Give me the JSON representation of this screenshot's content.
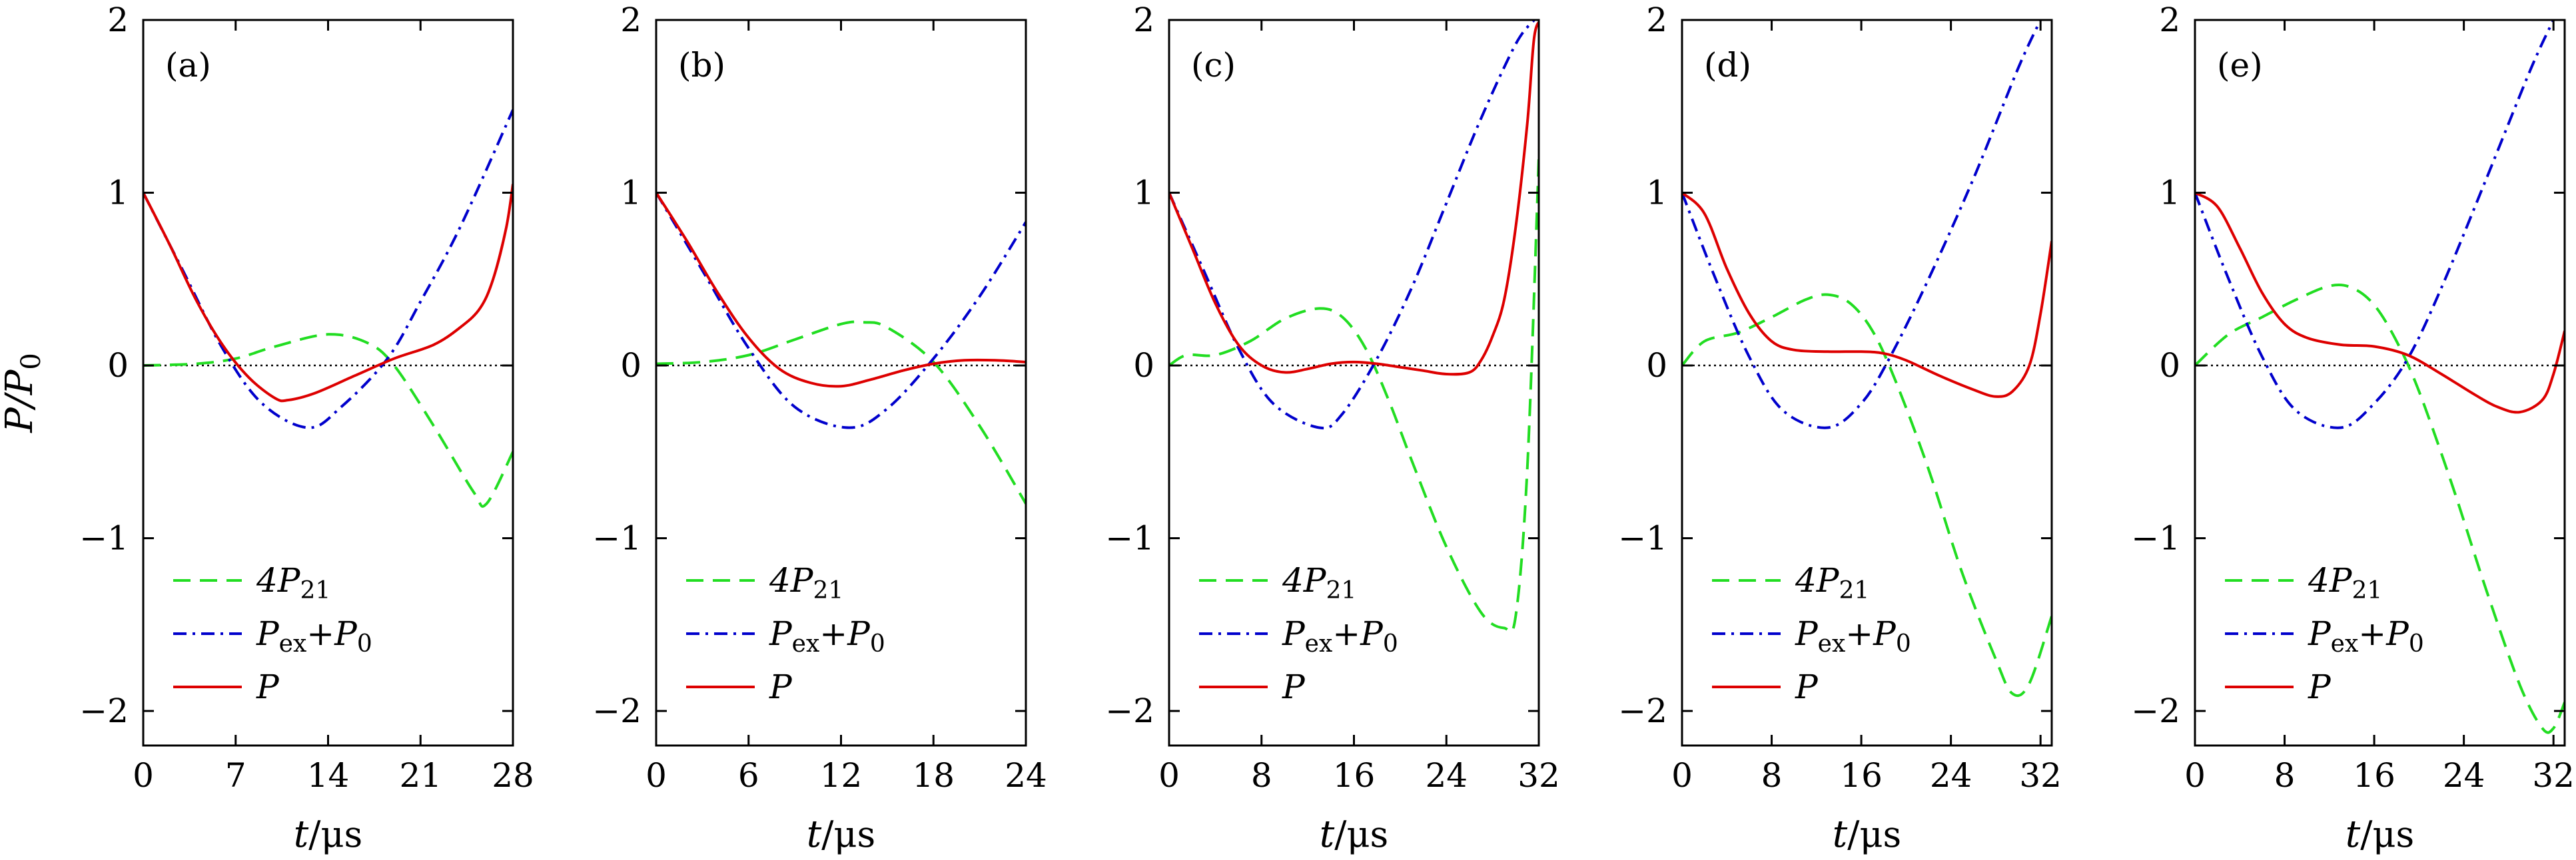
{
  "figure": {
    "ylabel": "P/P0",
    "ylabel_main": "P/P",
    "ylabel_sub": "0",
    "xlabel_var": "t",
    "xlabel_unit": "/μs"
  },
  "legend": {
    "entries": [
      {
        "label_main": "4P",
        "label_sub": "21",
        "color": "#22dd22",
        "style": "dashed"
      },
      {
        "label_main": "P",
        "label_sub": "ex",
        "label_rest": "+P",
        "label_sub2": "0",
        "color": "#0000cc",
        "style": "dashdot"
      },
      {
        "label_main": "P",
        "label_sub": "",
        "color": "#dd0000",
        "style": "solid"
      }
    ]
  },
  "chart_data": [
    {
      "type": "line",
      "panel": "(a)",
      "xlim": [
        0,
        28
      ],
      "ylim": [
        -2.2,
        2
      ],
      "xticks": [
        "0",
        "7",
        "14",
        "21",
        "28"
      ],
      "xtick_values": [
        0,
        7,
        14,
        21,
        28
      ],
      "yticks": [
        "−2",
        "−1",
        "0",
        "1",
        "2"
      ],
      "ytick_values": [
        -2,
        -1,
        0,
        1,
        2
      ],
      "xlabel": "t/μs",
      "ylabel": "P/P0",
      "series": [
        {
          "name": "4P21",
          "color": "#22dd22",
          "style": "dashed",
          "x": [
            0,
            4,
            7,
            10,
            14,
            17,
            19,
            22,
            25,
            26,
            28
          ],
          "y": [
            0,
            0.01,
            0.04,
            0.11,
            0.18,
            0.13,
            0.0,
            -0.35,
            -0.73,
            -0.8,
            -0.5
          ]
        },
        {
          "name": "Pex+P0",
          "color": "#0000cc",
          "style": "dashdot",
          "x": [
            0,
            3,
            6,
            9,
            12.5,
            15,
            18.5,
            21,
            24,
            28
          ],
          "y": [
            1,
            0.55,
            0.1,
            -0.22,
            -0.36,
            -0.24,
            0.04,
            0.37,
            0.8,
            1.48
          ]
        },
        {
          "name": "P",
          "color": "#dd0000",
          "style": "solid",
          "x": [
            0,
            2,
            4,
            6,
            8,
            10,
            11,
            13,
            16,
            19,
            22,
            24,
            25.5,
            26.5,
            27.5,
            28
          ],
          "y": [
            1,
            0.7,
            0.38,
            0.12,
            -0.07,
            -0.19,
            -0.2,
            -0.16,
            -0.06,
            0.04,
            0.12,
            0.22,
            0.33,
            0.5,
            0.8,
            1.05
          ]
        }
      ]
    },
    {
      "type": "line",
      "panel": "(b)",
      "xlim": [
        0,
        24
      ],
      "ylim": [
        -2.2,
        2
      ],
      "xticks": [
        "0",
        "6",
        "12",
        "18",
        "24"
      ],
      "xtick_values": [
        0,
        6,
        12,
        18,
        24
      ],
      "yticks": [
        "−2",
        "−1",
        "0",
        "1",
        "2"
      ],
      "ytick_values": [
        -2,
        -1,
        0,
        1,
        2
      ],
      "xlabel": "t/μs",
      "ylabel": "P/P0",
      "series": [
        {
          "name": "4P21",
          "color": "#22dd22",
          "style": "dashed",
          "x": [
            0,
            3,
            6,
            9,
            12,
            13.5,
            15,
            18,
            21,
            24
          ],
          "y": [
            0.01,
            0.02,
            0.06,
            0.15,
            0.24,
            0.25,
            0.22,
            0.02,
            -0.35,
            -0.8
          ]
        },
        {
          "name": "Pex+P0",
          "color": "#0000cc",
          "style": "dashdot",
          "x": [
            0,
            3,
            6,
            9,
            12.5,
            15,
            18,
            21,
            24
          ],
          "y": [
            1,
            0.55,
            0.1,
            -0.24,
            -0.36,
            -0.25,
            0.04,
            0.4,
            0.83
          ]
        },
        {
          "name": "P",
          "color": "#dd0000",
          "style": "solid",
          "x": [
            0,
            2,
            4,
            6,
            8,
            10,
            12,
            14,
            16,
            18,
            20,
            22,
            24
          ],
          "y": [
            1,
            0.72,
            0.42,
            0.16,
            -0.02,
            -0.1,
            -0.12,
            -0.08,
            -0.03,
            0.01,
            0.03,
            0.03,
            0.02
          ]
        }
      ]
    },
    {
      "type": "line",
      "panel": "(c)",
      "xlim": [
        0,
        32
      ],
      "ylim": [
        -2.2,
        2
      ],
      "xticks": [
        "0",
        "8",
        "16",
        "24",
        "32"
      ],
      "xtick_values": [
        0,
        8,
        16,
        24,
        32
      ],
      "yticks": [
        "−2",
        "−1",
        "0",
        "1",
        "2"
      ],
      "ytick_values": [
        -2,
        -1,
        0,
        1,
        2
      ],
      "xlabel": "t/μs",
      "ylabel": "P/P0",
      "series": [
        {
          "name": "4P21",
          "color": "#22dd22",
          "style": "dashed",
          "x": [
            0,
            1.5,
            4,
            7,
            10,
            13,
            15,
            17,
            19,
            21,
            24,
            27,
            29,
            30,
            31,
            32,
            32.4
          ],
          "y": [
            0,
            0.06,
            0.06,
            0.14,
            0.27,
            0.33,
            0.28,
            0.1,
            -0.2,
            -0.55,
            -1.05,
            -1.43,
            -1.52,
            -1.45,
            -0.6,
            1.2,
            2
          ]
        },
        {
          "name": "Pex+P0",
          "color": "#0000cc",
          "style": "dashdot",
          "x": [
            0,
            3,
            6,
            9,
            13,
            15,
            18,
            21,
            24,
            27,
            30,
            31.6
          ],
          "y": [
            1,
            0.55,
            0.1,
            -0.22,
            -0.36,
            -0.28,
            0.04,
            0.45,
            0.94,
            1.43,
            1.86,
            2
          ]
        },
        {
          "name": "P",
          "color": "#dd0000",
          "style": "solid",
          "x": [
            0,
            2,
            4,
            6,
            8,
            10,
            12,
            14,
            16,
            18,
            20,
            22,
            24,
            26,
            27,
            28,
            29,
            30,
            31,
            31.6,
            32.2
          ],
          "y": [
            1,
            0.68,
            0.36,
            0.12,
            0.0,
            -0.04,
            -0.02,
            0.01,
            0.02,
            0.01,
            -0.01,
            -0.03,
            -0.05,
            -0.04,
            0.03,
            0.17,
            0.38,
            0.8,
            1.4,
            1.9,
            2
          ]
        }
      ]
    },
    {
      "type": "line",
      "panel": "(d)",
      "xlim": [
        0,
        33
      ],
      "ylim": [
        -2.2,
        2
      ],
      "xticks": [
        "0",
        "8",
        "16",
        "24",
        "32"
      ],
      "xtick_values": [
        0,
        8,
        16,
        24,
        32
      ],
      "yticks": [
        "−2",
        "−1",
        "0",
        "1",
        "2"
      ],
      "ytick_values": [
        -2,
        -1,
        0,
        1,
        2
      ],
      "xlabel": "t/μs",
      "ylabel": "P/P0",
      "series": [
        {
          "name": "4P21",
          "color": "#22dd22",
          "style": "dashed",
          "x": [
            0,
            2,
            5,
            8,
            11,
            13,
            15,
            17,
            19,
            22,
            25,
            28,
            29.5,
            31,
            33
          ],
          "y": [
            0,
            0.14,
            0.19,
            0.28,
            0.38,
            0.41,
            0.36,
            0.2,
            -0.08,
            -0.6,
            -1.2,
            -1.7,
            -1.9,
            -1.84,
            -1.45
          ]
        },
        {
          "name": "Pex+P0",
          "color": "#0000cc",
          "style": "dashdot",
          "x": [
            0,
            3,
            6,
            9,
            13,
            16,
            18.5,
            22,
            26,
            30,
            32
          ],
          "y": [
            1,
            0.5,
            0.05,
            -0.26,
            -0.36,
            -0.22,
            0.04,
            0.5,
            1.08,
            1.72,
            2
          ]
        },
        {
          "name": "P",
          "color": "#dd0000",
          "style": "solid",
          "x": [
            0,
            2,
            4,
            6,
            8,
            10,
            13,
            16,
            18,
            20,
            23,
            26,
            28,
            29.5,
            31,
            32,
            33
          ],
          "y": [
            1,
            0.88,
            0.56,
            0.3,
            0.14,
            0.09,
            0.08,
            0.08,
            0.07,
            0.03,
            -0.06,
            -0.14,
            -0.18,
            -0.15,
            0.0,
            0.3,
            0.72
          ]
        }
      ]
    },
    {
      "type": "line",
      "panel": "(e)",
      "xlim": [
        0,
        33
      ],
      "ylim": [
        -2.2,
        2
      ],
      "xticks": [
        "0",
        "8",
        "16",
        "24",
        "32"
      ],
      "xtick_values": [
        0,
        8,
        16,
        24,
        32
      ],
      "yticks": [
        "−2",
        "−1",
        "0",
        "1",
        "2"
      ],
      "ytick_values": [
        -2,
        -1,
        0,
        1,
        2
      ],
      "xlabel": "t/μs",
      "ylabel": "P/P0",
      "series": [
        {
          "name": "4P21",
          "color": "#22dd22",
          "style": "dashed",
          "x": [
            0,
            3,
            6,
            9,
            12,
            14,
            16,
            18,
            20,
            23,
            26,
            29,
            31,
            32,
            33
          ],
          "y": [
            0,
            0.18,
            0.28,
            0.38,
            0.46,
            0.45,
            0.35,
            0.14,
            -0.15,
            -0.7,
            -1.3,
            -1.85,
            -2.1,
            -2.1,
            -1.95
          ]
        },
        {
          "name": "Pex+P0",
          "color": "#0000cc",
          "style": "dashdot",
          "x": [
            0,
            3,
            6,
            9,
            13,
            16,
            19,
            22,
            26,
            30,
            32
          ],
          "y": [
            1,
            0.5,
            0.05,
            -0.26,
            -0.36,
            -0.22,
            0.04,
            0.45,
            1.08,
            1.72,
            2
          ]
        },
        {
          "name": "P",
          "color": "#dd0000",
          "style": "solid",
          "x": [
            0,
            2,
            4,
            6,
            8,
            10,
            13,
            16,
            19,
            22,
            25,
            27,
            29,
            31,
            32,
            33
          ],
          "y": [
            1,
            0.92,
            0.68,
            0.42,
            0.24,
            0.16,
            0.12,
            0.11,
            0.06,
            -0.05,
            -0.17,
            -0.24,
            -0.27,
            -0.2,
            -0.05,
            0.2
          ]
        }
      ]
    }
  ]
}
